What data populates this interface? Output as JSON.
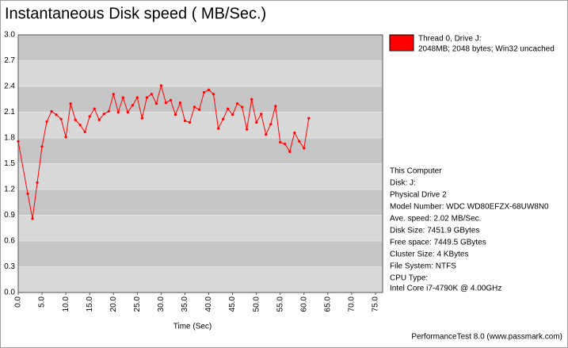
{
  "chart_data": {
    "type": "line",
    "title": "Instantaneous Disk speed ( MB/Sec.)",
    "x_label": "Time (Sec)",
    "x": [
      0,
      2,
      3,
      4,
      5,
      6,
      7,
      8,
      9,
      10,
      11,
      12,
      13,
      14,
      15,
      16,
      17,
      18,
      19,
      20,
      21,
      22,
      23,
      24,
      25,
      26,
      27,
      28,
      29,
      30,
      31,
      32,
      33,
      34,
      35,
      36,
      37,
      38,
      39,
      40,
      41,
      42,
      43,
      44,
      45,
      46,
      47,
      48,
      49,
      50,
      51,
      52,
      53,
      54,
      55,
      56,
      57,
      58,
      59,
      60,
      61
    ],
    "series": [
      {
        "name": "Thread 0, Drive J:",
        "detail": "2048MB; 2048 bytes; Win32 uncached",
        "color": "#ff0000",
        "values": [
          1.76,
          1.15,
          0.86,
          1.28,
          1.7,
          1.99,
          2.11,
          2.07,
          2.02,
          1.81,
          2.2,
          2.01,
          1.95,
          1.87,
          2.05,
          2.14,
          2.01,
          2.08,
          2.11,
          2.31,
          2.1,
          2.27,
          2.1,
          2.18,
          2.27,
          2.03,
          2.27,
          2.31,
          2.2,
          2.41,
          2.21,
          2.24,
          2.07,
          2.21,
          2.0,
          1.98,
          2.16,
          2.13,
          2.33,
          2.36,
          2.31,
          1.91,
          2.02,
          2.14,
          2.07,
          2.2,
          2.16,
          1.9,
          2.25,
          1.98,
          2.08,
          1.84,
          1.96,
          2.17,
          1.75,
          1.73,
          1.64,
          1.86,
          1.76,
          1.68,
          2.03
        ]
      }
    ],
    "xlim": [
      0,
      76.5
    ],
    "xticks": [
      {
        "value": 0,
        "label": "0.0"
      },
      {
        "value": 5,
        "label": "5.0"
      },
      {
        "value": 10,
        "label": "10.0"
      },
      {
        "value": 15,
        "label": "15.0"
      },
      {
        "value": 20,
        "label": "20.0"
      },
      {
        "value": 25,
        "label": "25.0"
      },
      {
        "value": 30,
        "label": "30.0"
      },
      {
        "value": 35,
        "label": "35.0"
      },
      {
        "value": 40,
        "label": "40.0"
      },
      {
        "value": 45,
        "label": "45.0"
      },
      {
        "value": 50,
        "label": "50.0"
      },
      {
        "value": 55,
        "label": "55.0"
      },
      {
        "value": 60,
        "label": "60.0"
      },
      {
        "value": 65,
        "label": "65.0"
      },
      {
        "value": 70,
        "label": "70.0"
      },
      {
        "value": 75,
        "label": "75.0"
      }
    ],
    "ylim": [
      0,
      3
    ],
    "yticks": [
      {
        "value": 0,
        "label": "0.0"
      },
      0.3,
      0.6,
      0.9,
      1.2,
      1.5,
      1.8,
      2.1,
      2.4,
      2.7,
      {
        "value": 3,
        "label": "3.0"
      }
    ],
    "grid": true,
    "info": [
      "This Computer",
      "Disk: J:",
      "Physical Drive 2",
      "Model Number: WDC WD80EFZX-68UW8N0",
      "Ave. speed: 2.02 MB/Sec.",
      "Disk Size: 7451.9 GBytes",
      "Free space: 7449.5 GBytes",
      "Cluster Size: 4 KBytes",
      "File System: NTFS",
      "CPU Type:",
      "Intel Core i7-4790K @ 4.00GHz"
    ],
    "footer": "PerformanceTest 8.0 (www.passmark.com)"
  }
}
